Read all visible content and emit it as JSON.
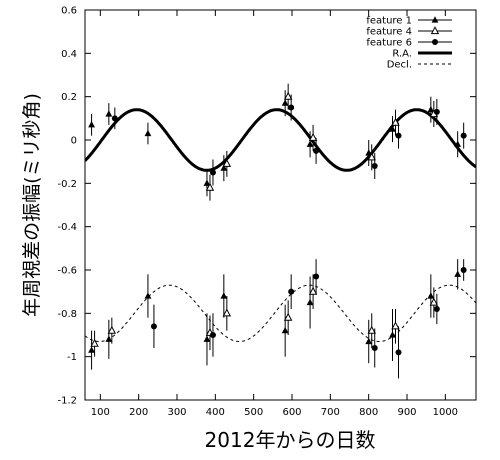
{
  "chart_data": {
    "type": "scatter",
    "xlabel": "2012年からの日数",
    "ylabel": "年周視差の振幅(ミリ秒角)",
    "xlim": [
      60,
      1080
    ],
    "ylim": [
      -1.2,
      0.6
    ],
    "x_ticks": [
      100,
      200,
      300,
      400,
      500,
      600,
      700,
      800,
      900,
      1000
    ],
    "y_ticks": [
      -1.2,
      -1,
      -0.8,
      -0.6,
      -0.4,
      -0.2,
      0,
      0.2,
      0.4,
      0.6
    ],
    "y_tick_labels": [
      "-1.2",
      "-1",
      "-0.8",
      "-0.6",
      "-0.4",
      "-0.2",
      "0",
      "0.2",
      "0.4",
      "0.6"
    ],
    "grid": false,
    "legend_position": "top-right",
    "legend": [
      {
        "label": "feature 1",
        "marker": "triangle-filled"
      },
      {
        "label": "feature 4",
        "marker": "triangle-open"
      },
      {
        "label": "feature 6",
        "marker": "circle-filled"
      },
      {
        "label": "R.A.",
        "style": "thick-solid-line"
      },
      {
        "label": "Decl.",
        "style": "dashed-line"
      }
    ],
    "series": [
      {
        "name": "feature 1",
        "marker": "triangle-filled",
        "component": "R.A.",
        "points": [
          {
            "x": 85,
            "y": 0.07,
            "err": 0.05
          },
          {
            "x": 130,
            "y": 0.12,
            "err": 0.05
          },
          {
            "x": 232,
            "y": 0.03,
            "err": 0.05
          },
          {
            "x": 386,
            "y": -0.2,
            "err": 0.06
          },
          {
            "x": 430,
            "y": -0.13,
            "err": 0.06
          },
          {
            "x": 590,
            "y": 0.17,
            "err": 0.06
          },
          {
            "x": 655,
            "y": -0.02,
            "err": 0.06
          },
          {
            "x": 808,
            "y": -0.06,
            "err": 0.06
          },
          {
            "x": 870,
            "y": 0.05,
            "err": 0.06
          },
          {
            "x": 970,
            "y": 0.14,
            "err": 0.06
          },
          {
            "x": 1040,
            "y": -0.02,
            "err": 0.06
          }
        ]
      },
      {
        "name": "feature 4",
        "marker": "triangle-open",
        "component": "R.A.",
        "points": [
          {
            "x": 386,
            "y": -0.22,
            "err": 0.06
          },
          {
            "x": 430,
            "y": -0.11,
            "err": 0.06
          },
          {
            "x": 590,
            "y": 0.2,
            "err": 0.06
          },
          {
            "x": 655,
            "y": 0.01,
            "err": 0.06
          },
          {
            "x": 808,
            "y": -0.08,
            "err": 0.06
          },
          {
            "x": 870,
            "y": 0.08,
            "err": 0.06
          },
          {
            "x": 970,
            "y": 0.12,
            "err": 0.06
          }
        ]
      },
      {
        "name": "feature 6",
        "marker": "circle-filled",
        "component": "R.A.",
        "points": [
          {
            "x": 130,
            "y": 0.1,
            "err": 0.05
          },
          {
            "x": 386,
            "y": -0.15,
            "err": 0.06
          },
          {
            "x": 590,
            "y": 0.15,
            "err": 0.06
          },
          {
            "x": 655,
            "y": -0.05,
            "err": 0.06
          },
          {
            "x": 808,
            "y": -0.12,
            "err": 0.06
          },
          {
            "x": 870,
            "y": 0.02,
            "err": 0.06
          },
          {
            "x": 970,
            "y": 0.13,
            "err": 0.06
          },
          {
            "x": 1040,
            "y": 0.02,
            "err": 0.06
          }
        ]
      },
      {
        "name": "feature 1",
        "marker": "triangle-filled",
        "component": "Decl.",
        "points": [
          {
            "x": 85,
            "y": -0.97,
            "err": 0.09
          },
          {
            "x": 130,
            "y": -0.92,
            "err": 0.09
          },
          {
            "x": 232,
            "y": -0.72,
            "err": 0.1
          },
          {
            "x": 386,
            "y": -0.92,
            "err": 0.12
          },
          {
            "x": 430,
            "y": -0.72,
            "err": 0.1
          },
          {
            "x": 590,
            "y": -0.88,
            "err": 0.12
          },
          {
            "x": 655,
            "y": -0.75,
            "err": 0.12
          },
          {
            "x": 808,
            "y": -0.93,
            "err": 0.1
          },
          {
            "x": 870,
            "y": -0.9,
            "err": 0.12
          },
          {
            "x": 970,
            "y": -0.72,
            "err": 0.1
          },
          {
            "x": 1040,
            "y": -0.62,
            "err": 0.07
          }
        ]
      },
      {
        "name": "feature 4",
        "marker": "triangle-open",
        "component": "Decl.",
        "points": [
          {
            "x": 85,
            "y": -0.94,
            "err": 0.06
          },
          {
            "x": 130,
            "y": -0.88,
            "err": 0.06
          },
          {
            "x": 386,
            "y": -0.89,
            "err": 0.08
          },
          {
            "x": 430,
            "y": -0.8,
            "err": 0.08
          },
          {
            "x": 590,
            "y": -0.82,
            "err": 0.08
          },
          {
            "x": 655,
            "y": -0.7,
            "err": 0.08
          },
          {
            "x": 808,
            "y": -0.88,
            "err": 0.08
          },
          {
            "x": 870,
            "y": -0.86,
            "err": 0.08
          },
          {
            "x": 970,
            "y": -0.75,
            "err": 0.07
          }
        ]
      },
      {
        "name": "feature 6",
        "marker": "circle-filled",
        "component": "Decl.",
        "points": [
          {
            "x": 232,
            "y": -0.86,
            "err": 0.1
          },
          {
            "x": 386,
            "y": -0.9,
            "err": 0.1
          },
          {
            "x": 590,
            "y": -0.7,
            "err": 0.08
          },
          {
            "x": 655,
            "y": -0.63,
            "err": 0.08
          },
          {
            "x": 808,
            "y": -0.96,
            "err": 0.09
          },
          {
            "x": 870,
            "y": -0.98,
            "err": 0.12
          },
          {
            "x": 970,
            "y": -0.78,
            "err": 0.07
          },
          {
            "x": 1040,
            "y": -0.6,
            "err": 0.05
          }
        ]
      }
    ],
    "model_curves": [
      {
        "name": "R.A.",
        "style": "solid",
        "amplitude": 0.14,
        "offset": 0.0,
        "period": 365.25,
        "peak_x": 195
      },
      {
        "name": "Decl.",
        "style": "dashed",
        "amplitude": 0.13,
        "offset": -0.8,
        "period": 365.25,
        "peak_x": 280
      }
    ]
  }
}
